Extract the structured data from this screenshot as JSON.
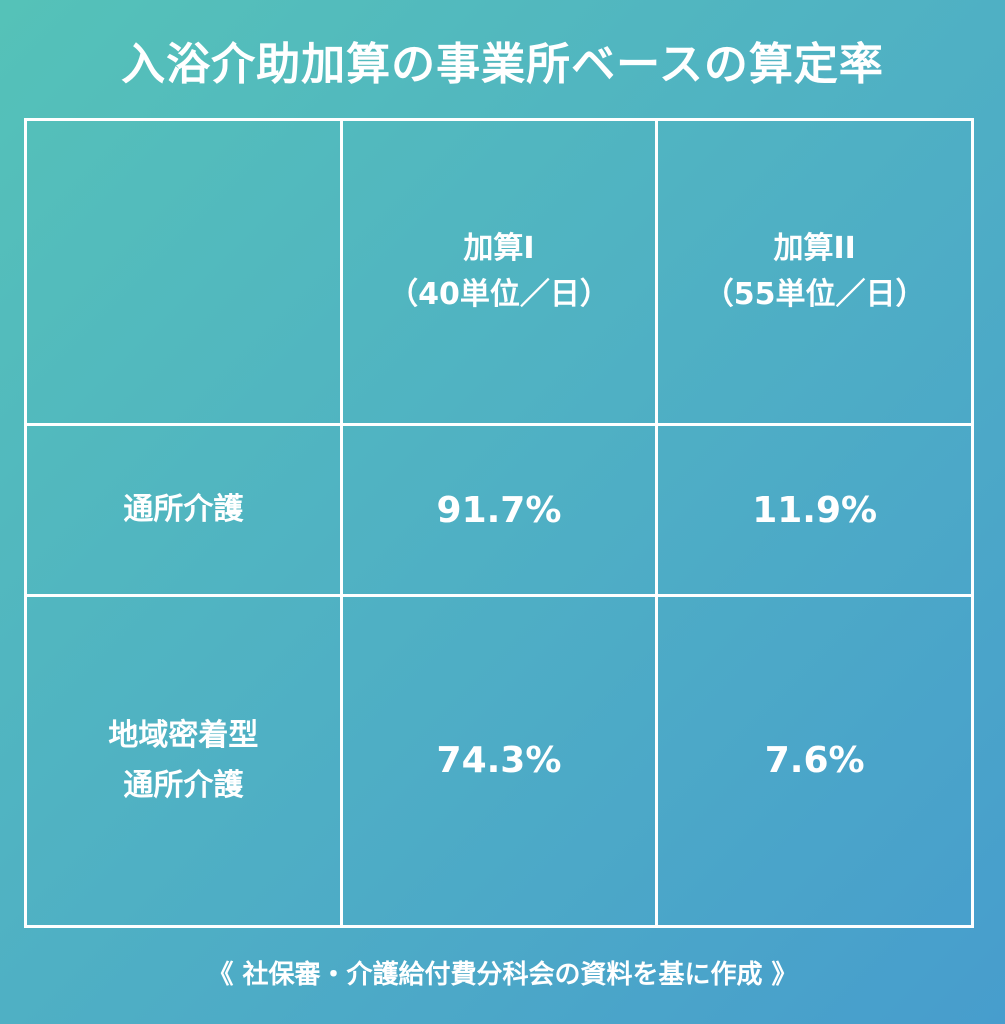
{
  "title": "入浴介助加算の事業所ベースの算定率",
  "source_note": "《 社保審・介護給付費分科会の資料を基に作成 》",
  "chart_data": {
    "type": "table",
    "columns": [
      {
        "line1": "加算I",
        "line2": "（40単位／日）"
      },
      {
        "line1": "加算II",
        "line2": "（55単位／日）"
      }
    ],
    "rows": [
      {
        "line1": "通所介護",
        "line2": "",
        "values": [
          "91.7%",
          "11.9%"
        ]
      },
      {
        "line1": "地域密着型",
        "line2": "通所介護",
        "values": [
          "74.3%",
          "7.6%"
        ]
      }
    ]
  },
  "colors": {
    "gradient_start": "#55c2b8",
    "gradient_end": "#479dcd",
    "text": "#ffffff",
    "grid_lines": "#ffffff"
  }
}
